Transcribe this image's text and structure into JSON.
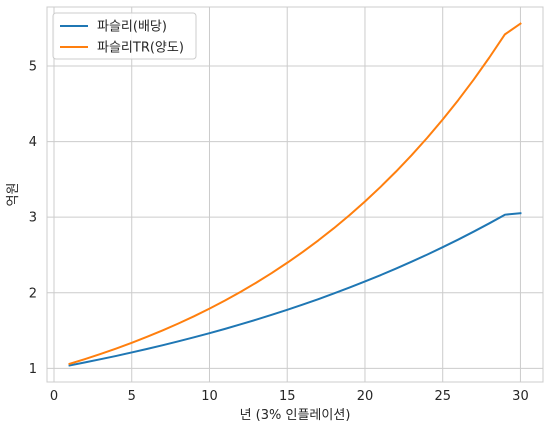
{
  "chart_data": {
    "type": "line",
    "title": "",
    "xlabel": "년 (3% 인플레이션)",
    "ylabel": "억원",
    "xlim": [
      -0.45,
      31.45
    ],
    "ylim": [
      0.82,
      5.78
    ],
    "xticks": [
      0,
      5,
      10,
      15,
      20,
      25,
      30
    ],
    "yticks": [
      1,
      2,
      3,
      4,
      5
    ],
    "grid": true,
    "legend_position": "top-left",
    "x": [
      1,
      2,
      3,
      4,
      5,
      6,
      7,
      8,
      9,
      10,
      11,
      12,
      13,
      14,
      15,
      16,
      17,
      18,
      19,
      20,
      21,
      22,
      23,
      24,
      25,
      26,
      27,
      28,
      29,
      30
    ],
    "series": [
      {
        "name": "파슬리(배당)",
        "color": "#1f77b4",
        "values": [
          1.039,
          1.08,
          1.122,
          1.165,
          1.211,
          1.258,
          1.307,
          1.358,
          1.411,
          1.466,
          1.523,
          1.583,
          1.644,
          1.709,
          1.775,
          1.844,
          1.916,
          1.991,
          2.069,
          2.15,
          2.233,
          2.32,
          2.411,
          2.505,
          2.603,
          2.704,
          2.81,
          2.919,
          3.033,
          3.052
        ]
      },
      {
        "name": "파슬리TR(양도)",
        "color": "#ff7f0e",
        "values": [
          1.06,
          1.124,
          1.191,
          1.262,
          1.338,
          1.419,
          1.504,
          1.594,
          1.689,
          1.791,
          1.898,
          2.012,
          2.133,
          2.261,
          2.397,
          2.54,
          2.693,
          2.854,
          3.026,
          3.207,
          3.4,
          3.604,
          3.82,
          4.049,
          4.292,
          4.549,
          4.822,
          5.112,
          5.418,
          5.56
        ]
      }
    ]
  }
}
